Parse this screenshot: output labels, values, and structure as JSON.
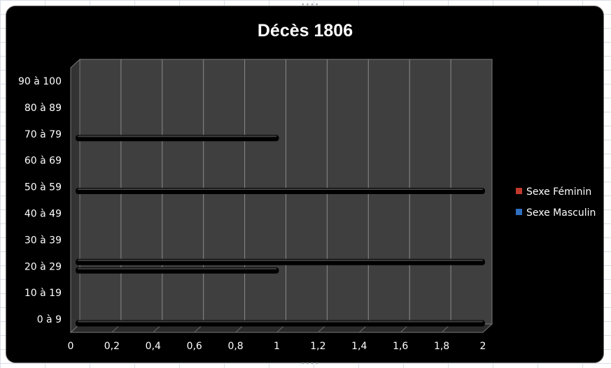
{
  "chart_data": {
    "type": "bar",
    "orientation": "horizontal",
    "title": "Décès 1806",
    "categories": [
      "0 à 9",
      "10 à 19",
      "20 à 29",
      "30 à 39",
      "40 à 49",
      "50 à 59",
      "60 à 69",
      "70 à 79",
      "80 à 89",
      "90 à 100"
    ],
    "series": [
      {
        "name": "Sexe Féminin",
        "color": "#c0392b",
        "values": [
          0,
          0,
          2,
          0,
          0,
          0,
          0,
          0,
          0,
          0
        ]
      },
      {
        "name": "Sexe Masculin",
        "color": "#2e6fc0",
        "values": [
          2,
          0,
          1,
          0,
          0,
          2,
          0,
          1,
          0,
          0
        ]
      }
    ],
    "xlim": [
      0,
      2
    ],
    "xticks": [
      "0",
      "0,2",
      "0,4",
      "0,6",
      "0,8",
      "1",
      "1,2",
      "1,4",
      "1,6",
      "1,8",
      "2"
    ],
    "grid": true,
    "legend_position": "right"
  }
}
